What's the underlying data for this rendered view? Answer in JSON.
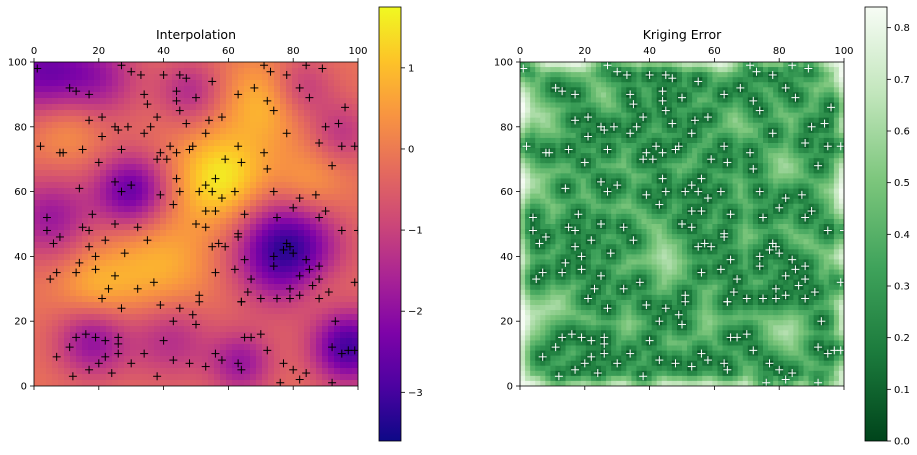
{
  "chart_data": [
    {
      "type": "heatmap",
      "title": "Interpolation",
      "colormap": "plasma",
      "xlim": [
        0,
        100
      ],
      "ylim": [
        0,
        100
      ],
      "x_ticks": [
        0,
        20,
        40,
        60,
        80,
        100
      ],
      "y_ticks": [
        0,
        20,
        40,
        60,
        80,
        100
      ],
      "marker": "+",
      "marker_color": "#000000",
      "colorbar": {
        "min": -3.6,
        "max": 1.75,
        "ticks": [
          1,
          0,
          -1,
          -2,
          -3
        ],
        "tick_labels": [
          "1",
          "0",
          "−1",
          "−2",
          "−3"
        ]
      },
      "anomalies": [
        {
          "x": 78,
          "y": 42,
          "value": -3.4,
          "radius": 11
        },
        {
          "x": 30,
          "y": 60,
          "value": -2.6,
          "radius": 8
        },
        {
          "x": 97,
          "y": 12,
          "value": -3.0,
          "radius": 8
        },
        {
          "x": 2,
          "y": 97,
          "value": -2.3,
          "radius": 10
        },
        {
          "x": 20,
          "y": 95,
          "value": -1.6,
          "radius": 9
        },
        {
          "x": 5,
          "y": 52,
          "value": -1.8,
          "radius": 9
        },
        {
          "x": 18,
          "y": 14,
          "value": -2.0,
          "radius": 8
        },
        {
          "x": 42,
          "y": 15,
          "value": -1.5,
          "radius": 9
        },
        {
          "x": 64,
          "y": 7,
          "value": -1.8,
          "radius": 7
        },
        {
          "x": 48,
          "y": 91,
          "value": -1.4,
          "radius": 7
        },
        {
          "x": 82,
          "y": 92,
          "value": -1.4,
          "radius": 7
        },
        {
          "x": 95,
          "y": 78,
          "value": -1.2,
          "radius": 7
        },
        {
          "x": 58,
          "y": 64,
          "value": 1.6,
          "radius": 10
        },
        {
          "x": 38,
          "y": 36,
          "value": 0.9,
          "radius": 12
        },
        {
          "x": 72,
          "y": 88,
          "value": 1.0,
          "radius": 9
        },
        {
          "x": 85,
          "y": 62,
          "value": 0.7,
          "radius": 8
        },
        {
          "x": 10,
          "y": 80,
          "value": 0.6,
          "radius": 8
        },
        {
          "x": 18,
          "y": 30,
          "value": 0.7,
          "radius": 8
        },
        {
          "x": 88,
          "y": 30,
          "value": 0.4,
          "radius": 7
        }
      ],
      "points": [
        [
          1,
          98
        ],
        [
          11,
          92
        ],
        [
          13,
          91
        ],
        [
          17,
          90
        ],
        [
          21,
          83
        ],
        [
          25,
          80
        ],
        [
          27,
          99
        ],
        [
          30,
          97
        ],
        [
          45,
          96
        ],
        [
          44,
          91
        ],
        [
          47,
          95
        ],
        [
          50,
          89
        ],
        [
          44,
          88
        ],
        [
          45,
          85
        ],
        [
          55,
          94
        ],
        [
          63,
          90
        ],
        [
          71,
          99
        ],
        [
          73,
          97
        ],
        [
          68,
          92
        ],
        [
          72,
          88
        ],
        [
          74,
          85
        ],
        [
          78,
          96
        ],
        [
          82,
          92
        ],
        [
          85,
          89
        ],
        [
          84,
          99
        ],
        [
          89,
          98
        ],
        [
          96,
          86
        ],
        [
          90,
          80
        ],
        [
          88,
          75
        ],
        [
          94,
          81
        ],
        [
          95,
          74
        ],
        [
          92,
          68
        ],
        [
          99,
          74
        ],
        [
          78,
          78
        ],
        [
          71,
          72
        ],
        [
          72,
          67
        ],
        [
          74,
          60
        ],
        [
          80,
          55
        ],
        [
          82,
          58
        ],
        [
          87,
          59
        ],
        [
          88,
          52
        ],
        [
          90,
          54
        ],
        [
          95,
          48
        ],
        [
          100,
          48
        ],
        [
          99,
          32
        ],
        [
          93,
          20
        ],
        [
          92,
          12
        ],
        [
          95,
          10
        ],
        [
          97,
          11
        ],
        [
          99,
          11
        ],
        [
          91,
          29
        ],
        [
          88,
          27
        ],
        [
          82,
          28
        ],
        [
          79,
          30
        ],
        [
          79,
          27
        ],
        [
          75,
          27
        ],
        [
          70,
          27
        ],
        [
          66,
          29
        ],
        [
          64,
          26
        ],
        [
          74,
          37
        ],
        [
          74,
          40
        ],
        [
          77,
          42
        ],
        [
          78,
          44
        ],
        [
          79,
          43
        ],
        [
          80,
          41
        ],
        [
          84,
          39
        ],
        [
          85,
          36
        ],
        [
          88,
          37
        ],
        [
          82,
          34
        ],
        [
          86,
          31
        ],
        [
          88,
          33
        ],
        [
          75,
          52
        ],
        [
          65,
          53
        ],
        [
          63,
          47
        ],
        [
          56,
          54
        ],
        [
          53,
          49
        ],
        [
          55,
          43
        ],
        [
          56,
          35
        ],
        [
          63,
          46
        ],
        [
          56,
          10
        ],
        [
          58,
          8
        ],
        [
          63,
          7
        ],
        [
          64,
          5
        ],
        [
          53,
          6
        ],
        [
          48,
          7
        ],
        [
          43,
          8
        ],
        [
          43,
          20
        ],
        [
          49,
          22
        ],
        [
          50,
          19
        ],
        [
          45,
          24
        ],
        [
          51,
          26
        ],
        [
          51,
          28
        ],
        [
          37,
          32
        ],
        [
          39,
          25
        ],
        [
          40,
          14
        ],
        [
          34,
          10
        ],
        [
          26,
          10
        ],
        [
          22,
          14
        ],
        [
          26,
          13
        ],
        [
          26,
          15
        ],
        [
          16,
          16
        ],
        [
          13,
          15
        ],
        [
          11,
          12
        ],
        [
          7,
          9
        ],
        [
          12,
          3
        ],
        [
          17,
          5
        ],
        [
          20,
          7
        ],
        [
          19,
          15
        ],
        [
          25,
          34
        ],
        [
          21,
          27
        ],
        [
          27,
          24
        ],
        [
          19,
          36
        ],
        [
          19,
          40
        ],
        [
          17,
          43
        ],
        [
          14,
          38
        ],
        [
          13,
          35
        ],
        [
          7,
          35
        ],
        [
          5,
          33
        ],
        [
          4,
          48
        ],
        [
          4,
          52
        ],
        [
          8,
          46
        ],
        [
          6,
          44
        ],
        [
          15,
          49
        ],
        [
          18,
          53
        ],
        [
          17,
          48
        ],
        [
          25,
          50
        ],
        [
          22,
          45
        ],
        [
          23,
          30
        ],
        [
          27,
          60
        ],
        [
          30,
          62
        ],
        [
          25,
          63
        ],
        [
          14,
          61
        ],
        [
          9,
          72
        ],
        [
          8,
          72
        ],
        [
          2,
          74
        ],
        [
          17,
          82
        ],
        [
          15,
          73
        ],
        [
          21,
          77
        ],
        [
          27,
          73
        ],
        [
          20,
          69
        ],
        [
          26,
          79
        ],
        [
          29,
          80
        ],
        [
          34,
          78
        ],
        [
          36,
          80
        ],
        [
          38,
          83
        ],
        [
          39,
          72
        ],
        [
          41,
          70
        ],
        [
          48,
          73
        ],
        [
          49,
          74
        ],
        [
          47,
          81
        ],
        [
          54,
          82
        ],
        [
          58,
          83
        ],
        [
          53,
          78
        ],
        [
          59,
          70
        ],
        [
          63,
          74
        ],
        [
          64,
          69
        ],
        [
          56,
          64
        ],
        [
          53,
          62
        ],
        [
          51,
          60
        ],
        [
          39,
          59
        ],
        [
          44,
          64
        ],
        [
          45,
          60
        ],
        [
          43,
          56
        ],
        [
          53,
          54
        ],
        [
          50,
          50
        ],
        [
          62,
          36
        ],
        [
          67,
          33
        ],
        [
          65,
          39
        ],
        [
          58,
          58
        ],
        [
          62,
          60
        ],
        [
          65,
          15
        ],
        [
          67,
          15
        ],
        [
          70,
          16
        ],
        [
          72,
          11
        ],
        [
          77,
          7
        ],
        [
          80,
          5
        ],
        [
          84,
          4
        ],
        [
          82,
          2
        ],
        [
          92,
          1
        ],
        [
          76,
          1
        ],
        [
          64,
          26
        ],
        [
          59,
          43
        ],
        [
          35,
          87
        ],
        [
          34,
          90
        ],
        [
          38,
          70
        ],
        [
          42,
          74
        ],
        [
          44,
          72
        ],
        [
          32,
          49
        ],
        [
          35,
          45
        ],
        [
          28,
          41
        ],
        [
          32,
          30
        ],
        [
          22,
          9
        ],
        [
          24,
          4
        ],
        [
          30,
          7
        ],
        [
          38,
          3
        ],
        [
          33,
          96
        ],
        [
          40,
          96
        ],
        [
          55,
          60
        ],
        [
          57,
          44
        ]
      ]
    },
    {
      "type": "heatmap",
      "title": "Kriging Error",
      "colormap": "Greens_r",
      "xlim": [
        0,
        100
      ],
      "ylim": [
        0,
        100
      ],
      "x_ticks": [
        0,
        20,
        40,
        60,
        80,
        100
      ],
      "y_ticks": [
        0,
        20,
        40,
        60,
        80,
        100
      ],
      "marker": "+",
      "marker_color": "#ffffff",
      "colorbar": {
        "min": 0.0,
        "max": 0.84,
        "ticks": [
          0.8,
          0.7,
          0.6,
          0.5,
          0.4,
          0.3,
          0.2,
          0.1,
          0.0
        ],
        "tick_labels": [
          "0.8",
          "0.7",
          "0.6",
          "0.5",
          "0.4",
          "0.3",
          "0.2",
          "0.1",
          "0.0"
        ]
      }
    }
  ]
}
